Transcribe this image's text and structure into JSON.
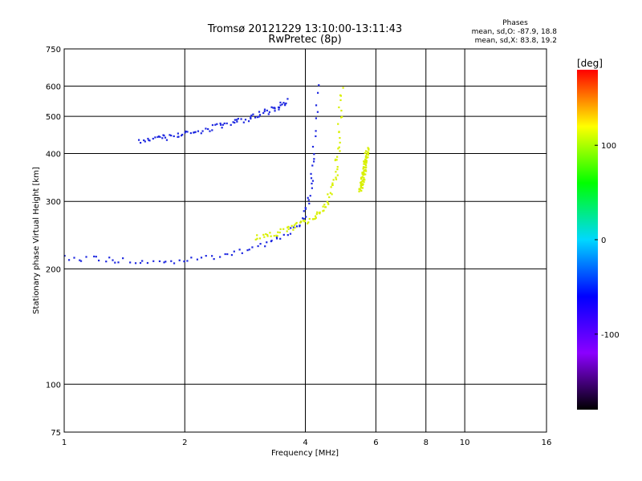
{
  "chart_data": {
    "type": "scatter",
    "title": "Tromsø 20121229 13:10:00-13:11:43",
    "subtitle": "RwPretec (8p)",
    "xlabel": "Frequency [MHz]",
    "ylabel": "Stationary phase Virtual Height [km]",
    "x_scale": "log",
    "y_scale": "log",
    "xlim": [
      1,
      16
    ],
    "ylim": [
      75,
      750
    ],
    "grid": true,
    "x_ticks": [
      1,
      2,
      4,
      6,
      8,
      10,
      16
    ],
    "x_tick_labels": [
      "1",
      "2",
      "4",
      "6",
      "8",
      "10",
      "16"
    ],
    "y_ticks": [
      75,
      100,
      200,
      300,
      400,
      500,
      600,
      750
    ],
    "y_tick_labels": [
      "75",
      "100",
      "200",
      "300",
      "400",
      "500",
      "600",
      "750"
    ],
    "phases": {
      "title": "Phases",
      "o_line": "mean, sd,O: -87.9, 18.8",
      "x_line": "mean, sd,X:  83.8, 19.2"
    },
    "colorbar": {
      "label": "[deg]",
      "range": [
        -180,
        180
      ],
      "ticks": [
        100,
        0,
        -100
      ],
      "tick_labels": [
        "100",
        "0",
        "-100"
      ],
      "colors": [
        "#000000",
        "#8b00ff",
        "#0000ff",
        "#00d8ff",
        "#00ff00",
        "#ffff00",
        "#ff0000"
      ]
    },
    "series": [
      {
        "name": "O",
        "phase": -88,
        "color": "#1e28e0",
        "traces": [
          {
            "x": [
              1.0,
              1.2,
              1.4,
              1.7,
              2.0,
              2.4,
              2.8,
              3.2,
              3.6,
              3.9,
              4.05,
              4.15,
              4.22,
              4.28
            ],
            "y": [
              215,
              212,
              210,
              208,
              210,
              215,
              222,
              232,
              248,
              265,
              290,
              340,
              420,
              600
            ]
          },
          {
            "x": [
              1.55,
              1.8,
              2.1,
              2.5,
              2.9,
              3.3,
              3.6
            ],
            "y": [
              430,
              440,
              455,
              475,
              495,
              520,
              550
            ]
          }
        ]
      },
      {
        "name": "X",
        "phase": 84,
        "color": "#d8f000",
        "traces": [
          {
            "x": [
              3.0,
              3.4,
              3.8,
              4.2,
              4.5,
              4.75,
              4.85,
              4.92
            ],
            "y": [
              240,
              248,
              258,
              272,
              292,
              340,
              420,
              590
            ]
          },
          {
            "x": [
              5.5,
              5.62,
              5.7
            ],
            "y": [
              320,
              360,
              410
            ]
          }
        ]
      }
    ]
  }
}
